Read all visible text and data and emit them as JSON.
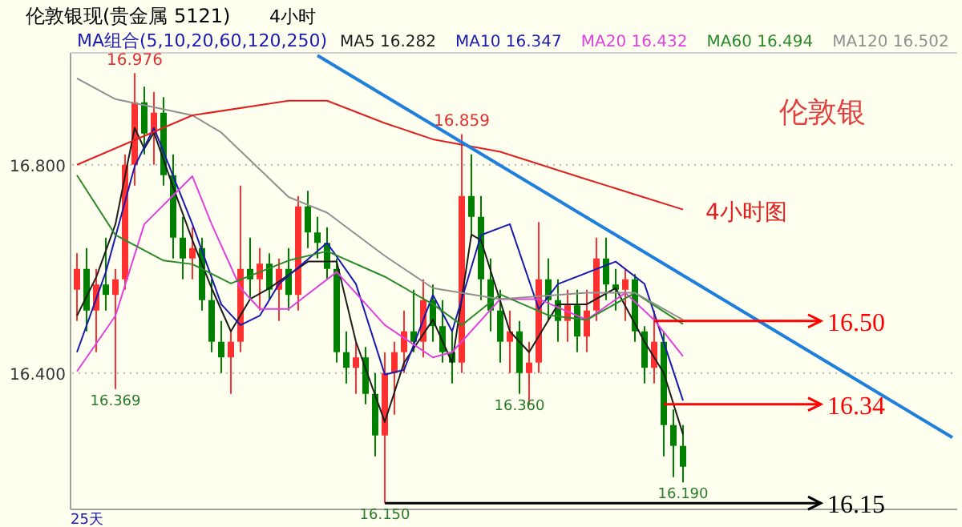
{
  "chart_data": {
    "type": "candlestick",
    "title": "伦敦银现(贵金属 5121)",
    "subtitle": "4小时",
    "categories": [
      null,
      null,
      null,
      null,
      null,
      null,
      null,
      null,
      null,
      null,
      null,
      null,
      null,
      null,
      null,
      null,
      null,
      null,
      null,
      null,
      null,
      null,
      null,
      null,
      null,
      null,
      null,
      null,
      null,
      null,
      null,
      null,
      null,
      null,
      null,
      null,
      null,
      null,
      null,
      null,
      null,
      null,
      null,
      null,
      null,
      null,
      null,
      null,
      null,
      null,
      null,
      null,
      null,
      null,
      null,
      null,
      null,
      null,
      null,
      null,
      null,
      null,
      null,
      null,
      null,
      null,
      null,
      null,
      null,
      null,
      null,
      null,
      null,
      null,
      null,
      null,
      null,
      null,
      null,
      null,
      null,
      null,
      null,
      null,
      null,
      null,
      null,
      null,
      null,
      null,
      null,
      null
    ],
    "ohlc": [
      [
        16.56,
        16.63,
        16.5,
        16.6
      ],
      [
        16.6,
        16.64,
        16.48,
        16.52
      ],
      [
        16.52,
        16.6,
        16.44,
        16.57
      ],
      [
        16.57,
        16.66,
        16.52,
        16.55
      ],
      [
        16.55,
        16.6,
        16.369,
        16.58
      ],
      [
        16.58,
        16.82,
        16.56,
        16.8
      ],
      [
        16.8,
        16.976,
        16.76,
        16.92
      ],
      [
        16.92,
        16.95,
        16.82,
        16.86
      ],
      [
        16.86,
        16.94,
        16.8,
        16.9
      ],
      [
        16.9,
        16.93,
        16.76,
        16.78
      ],
      [
        16.78,
        16.82,
        16.62,
        16.66
      ],
      [
        16.66,
        16.7,
        16.58,
        16.62
      ],
      [
        16.62,
        16.68,
        16.58,
        16.64
      ],
      [
        16.64,
        16.66,
        16.52,
        16.54
      ],
      [
        16.54,
        16.58,
        16.44,
        16.46
      ],
      [
        16.46,
        16.5,
        16.4,
        16.43
      ],
      [
        16.43,
        16.48,
        16.36,
        16.46
      ],
      [
        16.46,
        16.76,
        16.44,
        16.6
      ],
      [
        16.6,
        16.66,
        16.54,
        16.58
      ],
      [
        16.58,
        16.64,
        16.52,
        16.61
      ],
      [
        16.61,
        16.63,
        16.54,
        16.56
      ],
      [
        16.56,
        16.62,
        16.5,
        16.6
      ],
      [
        16.6,
        16.64,
        16.52,
        16.55
      ],
      [
        16.55,
        16.74,
        16.52,
        16.72
      ],
      [
        16.72,
        16.75,
        16.64,
        16.67
      ],
      [
        16.67,
        16.7,
        16.62,
        16.65
      ],
      [
        16.65,
        16.68,
        16.58,
        16.6
      ],
      [
        16.6,
        16.62,
        16.42,
        16.44
      ],
      [
        16.44,
        16.48,
        16.38,
        16.41
      ],
      [
        16.41,
        16.46,
        16.36,
        16.43
      ],
      [
        16.43,
        16.45,
        16.34,
        16.36
      ],
      [
        16.36,
        16.4,
        16.24,
        16.28
      ],
      [
        16.28,
        16.44,
        16.15,
        16.4
      ],
      [
        16.4,
        16.46,
        16.32,
        16.44
      ],
      [
        16.44,
        16.52,
        16.4,
        16.48
      ],
      [
        16.48,
        16.56,
        16.44,
        16.46
      ],
      [
        16.46,
        16.58,
        16.43,
        16.54
      ],
      [
        16.54,
        16.57,
        16.46,
        16.49
      ],
      [
        16.49,
        16.54,
        16.42,
        16.44
      ],
      [
        16.44,
        16.48,
        16.38,
        16.42
      ],
      [
        16.42,
        16.859,
        16.4,
        16.74
      ],
      [
        16.74,
        16.82,
        16.66,
        16.7
      ],
      [
        16.7,
        16.74,
        16.54,
        16.58
      ],
      [
        16.58,
        16.62,
        16.48,
        16.52
      ],
      [
        16.52,
        16.56,
        16.42,
        16.46
      ],
      [
        16.46,
        16.52,
        16.4,
        16.48
      ],
      [
        16.48,
        16.5,
        16.36,
        16.4
      ],
      [
        16.4,
        16.46,
        16.34,
        16.42
      ],
      [
        16.42,
        16.69,
        16.4,
        16.58
      ],
      [
        16.58,
        16.62,
        16.5,
        16.54
      ],
      [
        16.54,
        16.58,
        16.46,
        16.5
      ],
      [
        16.5,
        16.56,
        16.46,
        16.53
      ],
      [
        16.53,
        16.56,
        16.44,
        16.47
      ],
      [
        16.47,
        16.56,
        16.44,
        16.52
      ],
      [
        16.52,
        16.66,
        16.5,
        16.62
      ],
      [
        16.62,
        16.66,
        16.54,
        16.57
      ],
      [
        16.57,
        16.6,
        16.52,
        16.56
      ],
      [
        16.56,
        16.6,
        16.5,
        16.58
      ],
      [
        16.58,
        16.59,
        16.46,
        16.48
      ],
      [
        16.48,
        16.49,
        16.38,
        16.41
      ],
      [
        16.41,
        16.52,
        16.38,
        16.46
      ],
      [
        16.46,
        16.48,
        16.24,
        16.3
      ],
      [
        16.3,
        16.33,
        16.2,
        16.26
      ],
      [
        16.26,
        16.3,
        16.19,
        16.22
      ],
      null,
      null,
      null,
      null,
      null,
      null,
      null,
      null,
      null,
      null,
      null,
      null,
      null,
      null,
      null,
      null,
      null,
      null,
      null,
      null,
      null,
      null,
      null,
      null,
      null,
      null,
      null,
      null
    ],
    "colors": [
      "#ff3030",
      "#008000",
      "#ff3030",
      "#008000",
      "#ff3030",
      "#ff3030",
      "#ff3030",
      "#008000",
      "#ff3030",
      "#008000",
      "#008000",
      "#008000",
      "#ff3030",
      "#008000",
      "#008000",
      "#008000",
      "#ff3030",
      "#ff3030",
      "#008000",
      "#ff3030",
      "#008000",
      "#ff3030",
      "#008000",
      "#ff3030",
      "#008000",
      "#008000",
      "#008000",
      "#008000",
      "#008000",
      "#ff3030",
      "#008000",
      "#008000",
      "#ff3030",
      "#ff3030",
      "#ff3030",
      "#008000",
      "#ff3030",
      "#008000",
      "#008000",
      "#008000",
      "#ff3030",
      "#008000",
      "#008000",
      "#008000",
      "#008000",
      "#ff3030",
      "#008000",
      "#ff3030",
      "#ff3030",
      "#008000",
      "#008000",
      "#ff3030",
      "#008000",
      "#ff3030",
      "#ff3030",
      "#008000",
      "#008000",
      "#ff3030",
      "#008000",
      "#008000",
      "#ff3030",
      "#008000",
      "#008000",
      "#008000",
      null,
      null,
      null,
      null,
      null,
      null,
      null,
      null,
      null,
      null,
      null,
      null,
      null,
      null,
      null,
      null,
      null,
      null,
      null,
      null,
      null,
      null,
      null,
      null,
      null,
      null,
      null,
      null
    ],
    "series": [
      {
        "type": "line",
        "name": "MA5 16.282",
        "color": "#1c1c1c",
        "values": [
          16.51,
          null,
          16.584,
          null,
          16.686,
          null,
          16.871,
          16.831,
          16.862,
          null,
          16.757,
          null,
          16.655,
          null,
          16.563,
          null,
          16.48,
          null,
          16.542,
          null,
          16.563,
          null,
          null,
          null,
          16.614,
          null,
          null,
          16.614,
          null,
          16.46,
          null,
          null,
          16.306,
          null,
          16.42,
          null,
          null,
          16.502,
          null,
          16.42,
          null,
          16.666,
          16.655,
          null,
          null,
          16.48,
          null,
          16.44,
          null,
          null,
          16.532,
          null,
          null,
          16.532,
          null,
          null,
          16.563,
          null,
          null,
          16.46,
          null,
          16.4,
          null,
          16.282,
          null,
          null,
          null,
          null,
          null,
          null,
          null,
          null,
          null,
          null,
          null,
          null,
          null,
          null,
          null,
          null,
          null,
          null,
          null,
          null,
          null,
          null,
          null,
          null,
          null,
          null,
          null,
          null
        ]
      },
      {
        "type": "line",
        "name": "MA10 16.347",
        "color": "#1a1ab0",
        "values": [
          16.44,
          null,
          null,
          16.594,
          null,
          null,
          16.797,
          null,
          16.871,
          null,
          null,
          null,
          16.686,
          null,
          null,
          16.532,
          null,
          16.492,
          null,
          16.51,
          null,
          16.571,
          null,
          null,
          null,
          null,
          16.65,
          null,
          null,
          16.571,
          null,
          null,
          16.397,
          null,
          16.406,
          null,
          null,
          16.55,
          null,
          16.48,
          null,
          null,
          16.665,
          null,
          null,
          16.686,
          null,
          null,
          16.523,
          null,
          16.571,
          null,
          null,
          null,
          null,
          null,
          16.614,
          null,
          null,
          16.571,
          null,
          null,
          null,
          16.347,
          null,
          null,
          null,
          null,
          null,
          null,
          null,
          null,
          null,
          null,
          null,
          null,
          null,
          null,
          null,
          null,
          null,
          null,
          null,
          null,
          null,
          null,
          null,
          null,
          null,
          null,
          null,
          null
        ]
      },
      {
        "type": "line",
        "name": "MA20 16.432",
        "color": "#e040e0",
        "values": [
          16.403,
          null,
          null,
          null,
          16.51,
          null,
          null,
          16.686,
          null,
          null,
          null,
          null,
          16.778,
          null,
          16.686,
          null,
          null,
          16.563,
          null,
          16.523,
          null,
          null,
          16.523,
          null,
          null,
          null,
          null,
          16.594,
          null,
          null,
          null,
          null,
          16.492,
          null,
          null,
          null,
          null,
          16.43,
          null,
          16.44,
          null,
          null,
          null,
          null,
          16.542,
          null,
          null,
          null,
          16.542,
          null,
          null,
          null,
          null,
          16.502,
          null,
          null,
          null,
          16.554,
          null,
          null,
          16.502,
          null,
          null,
          16.432,
          null,
          null,
          null,
          null,
          null,
          null,
          null,
          null,
          null,
          null,
          null,
          null,
          null,
          null,
          null,
          null,
          null,
          null,
          null,
          null,
          null,
          null,
          null,
          null,
          null,
          null,
          null,
          null
        ]
      },
      {
        "type": "line",
        "name": "MA60 16.494",
        "color": "#2a8a2a",
        "values": [
          16.78,
          null,
          null,
          null,
          16.665,
          null,
          null,
          null,
          null,
          16.616,
          null,
          null,
          16.609,
          null,
          null,
          null,
          16.572,
          null,
          null,
          null,
          null,
          null,
          16.616,
          null,
          null,
          null,
          16.634,
          null,
          null,
          null,
          null,
          null,
          16.585,
          null,
          null,
          null,
          null,
          16.532,
          null,
          null,
          16.492,
          null,
          null,
          null,
          16.551,
          null,
          null,
          null,
          null,
          16.511,
          null,
          null,
          null,
          16.502,
          null,
          null,
          null,
          null,
          16.554,
          null,
          null,
          null,
          null,
          16.494,
          null,
          null,
          null,
          null,
          null,
          null,
          null,
          null,
          null,
          null,
          null,
          null,
          null,
          null,
          null,
          null,
          null,
          null,
          null,
          null,
          null,
          null,
          null,
          null,
          null,
          null,
          null,
          null
        ]
      },
      {
        "type": "line",
        "name": "MA120 16.502",
        "color": "#909090",
        "values": [
          16.966,
          null,
          null,
          null,
          16.926,
          null,
          null,
          null,
          null,
          null,
          null,
          null,
          16.895,
          null,
          null,
          16.862,
          null,
          null,
          null,
          null,
          null,
          null,
          16.738,
          null,
          null,
          null,
          16.708,
          null,
          null,
          null,
          null,
          null,
          16.625,
          null,
          null,
          null,
          null,
          16.563,
          null,
          null,
          null,
          null,
          null,
          null,
          16.542,
          null,
          null,
          null,
          null,
          null,
          null,
          null,
          null,
          16.554,
          null,
          null,
          null,
          null,
          16.554,
          null,
          null,
          null,
          null,
          16.502,
          null,
          null,
          null,
          null,
          null,
          null,
          null,
          null,
          null,
          null,
          null,
          null,
          null,
          null,
          null,
          null,
          null,
          null,
          null,
          null,
          null,
          null,
          null,
          null,
          null,
          null,
          null,
          null
        ]
      },
      {
        "type": "line",
        "color": "#e02020",
        "values": [
          16.8,
          null,
          null,
          null,
          null,
          null,
          null,
          null,
          null,
          null,
          null,
          null,
          16.895,
          null,
          null,
          null,
          null,
          null,
          null,
          null,
          null,
          null,
          16.923,
          null,
          null,
          null,
          16.923,
          null,
          null,
          null,
          null,
          null,
          16.88,
          null,
          null,
          null,
          null,
          16.849,
          null,
          null,
          null,
          null,
          null,
          null,
          16.825,
          null,
          null,
          null,
          null,
          null,
          null,
          null,
          null,
          16.772,
          null,
          null,
          null,
          null,
          null,
          null,
          null,
          null,
          null,
          16.714,
          null,
          null,
          null,
          null,
          null,
          null,
          null,
          null,
          null,
          null,
          null,
          null,
          null,
          null,
          null,
          null,
          null,
          null,
          null,
          null,
          null,
          null,
          null,
          null,
          null,
          null,
          null,
          null
        ]
      },
      {
        "type": "line",
        "color": "#1e7fdc",
        "values": [
          null,
          null,
          null,
          null,
          null,
          null,
          null,
          null,
          null,
          null,
          null,
          null,
          null,
          null,
          null,
          null,
          null,
          null,
          null,
          null,
          null,
          null,
          null,
          null,
          null,
          17.01,
          null,
          null,
          null,
          null,
          null,
          null,
          null,
          null,
          null,
          null,
          null,
          null,
          null,
          null,
          null,
          null,
          null,
          null,
          null,
          null,
          null,
          null,
          null,
          null,
          null,
          null,
          null,
          null,
          null,
          null,
          null,
          null,
          null,
          null,
          null,
          null,
          null,
          null,
          null,
          null,
          null,
          null,
          null,
          null,
          null,
          null,
          null,
          null,
          null,
          null,
          null,
          null,
          null,
          null,
          null,
          null,
          null,
          null,
          null,
          null,
          null,
          null,
          null,
          null,
          null,
          16.276
        ]
      }
    ],
    "ylim": [
      16.138,
      17.015
    ],
    "yticks": [
      {
        "value": 16.8,
        "label": "16.800"
      },
      {
        "value": 16.4,
        "label": "16.400"
      }
    ],
    "grid": "y",
    "legend": "top",
    "ref_lines": [
      {
        "axis": "y",
        "value": 16.5,
        "label": "16.50",
        "color": "#ff0000"
      },
      {
        "axis": "y",
        "value": 16.34,
        "label": "16.34",
        "color": "#ff0000"
      },
      {
        "axis": "y",
        "value": 16.15,
        "label": "16.15",
        "color": "#000000"
      }
    ],
    "annotations": [
      "MA组合(5,10,20,60,120,250)",
      "伦敦银",
      "4小时图",
      "25天",
      {
        "text": "16.976",
        "y": 16.976
      },
      {
        "text": "16.369",
        "y": 16.369
      },
      {
        "text": "16.360",
        "y": 16.36
      },
      {
        "text": "16.859",
        "y": 16.859
      },
      {
        "text": "16.150",
        "y": 16.15
      },
      {
        "text": "16.190",
        "y": 16.19
      }
    ]
  }
}
